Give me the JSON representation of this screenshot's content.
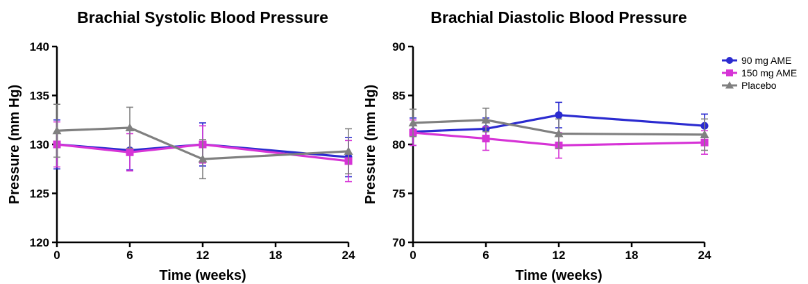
{
  "chart_data": [
    {
      "type": "line",
      "title": "Brachial Systolic Blood Pressure",
      "xlabel": "Time (weeks)",
      "ylabel": "Pressure (mm Hg)",
      "xlim": [
        0,
        24
      ],
      "ylim": [
        120,
        140
      ],
      "x_ticks": [
        "0",
        "6",
        "12",
        "18",
        "24"
      ],
      "y_ticks": [
        "120",
        "125",
        "130",
        "135",
        "140"
      ],
      "grid": false,
      "series": [
        {
          "name": "90 mg AME",
          "color": "#2b2bd0",
          "marker": "circle",
          "x": [
            0,
            6,
            12,
            24
          ],
          "y": [
            130.0,
            129.4,
            130.0,
            128.7
          ],
          "err": [
            2.5,
            2.0,
            2.2,
            2.0
          ]
        },
        {
          "name": "150 mg AME",
          "color": "#d633d6",
          "marker": "square",
          "x": [
            0,
            6,
            12,
            24
          ],
          "y": [
            130.0,
            129.2,
            130.0,
            128.3
          ],
          "err": [
            2.3,
            1.9,
            1.9,
            2.1
          ]
        },
        {
          "name": "Placebo",
          "color": "#808080",
          "marker": "triangle",
          "x": [
            0,
            6,
            12,
            24
          ],
          "y": [
            131.4,
            131.7,
            128.5,
            129.3
          ],
          "err": [
            2.7,
            2.1,
            2.0,
            2.3
          ]
        }
      ]
    },
    {
      "type": "line",
      "title": "Brachial Diastolic Blood Pressure",
      "xlabel": "Time (weeks)",
      "ylabel": "Pressure (mm Hg)",
      "xlim": [
        0,
        24
      ],
      "ylim": [
        70,
        90
      ],
      "x_ticks": [
        "0",
        "6",
        "12",
        "18",
        "24"
      ],
      "y_ticks": [
        "70",
        "75",
        "80",
        "85",
        "90"
      ],
      "grid": false,
      "legend": "top-right",
      "series": [
        {
          "name": "90 mg AME",
          "color": "#2b2bd0",
          "marker": "circle",
          "x": [
            0,
            6,
            12,
            24
          ],
          "y": [
            81.3,
            81.6,
            83.0,
            81.9
          ],
          "err": [
            1.4,
            1.1,
            1.3,
            1.2
          ]
        },
        {
          "name": "150 mg AME",
          "color": "#d633d6",
          "marker": "square",
          "x": [
            0,
            6,
            12,
            24
          ],
          "y": [
            81.2,
            80.6,
            79.9,
            80.2
          ],
          "err": [
            1.3,
            1.2,
            1.3,
            1.2
          ]
        },
        {
          "name": "Placebo",
          "color": "#808080",
          "marker": "triangle",
          "x": [
            0,
            6,
            12,
            24
          ],
          "y": [
            82.2,
            82.5,
            81.1,
            81.0
          ],
          "err": [
            1.4,
            1.2,
            1.5,
            1.6
          ]
        }
      ]
    }
  ]
}
